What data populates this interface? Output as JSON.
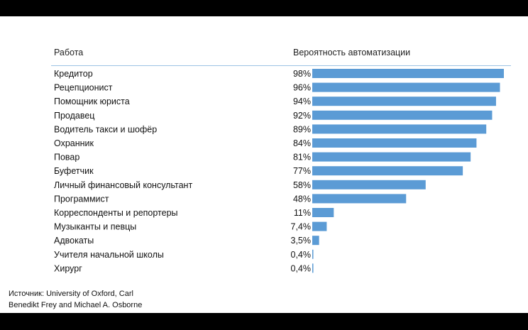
{
  "headers": {
    "job": "Работа",
    "probability": "Вероятность автоматизации"
  },
  "source": {
    "line1": "Источник: University of Oxford, Carl",
    "line2": "Benedikt Frey and Michael A. Osborne"
  },
  "colors": {
    "bar": "#5b9bd5",
    "divider": "#9cc3e4",
    "frame": "#000000"
  },
  "chart_data": {
    "type": "bar",
    "orientation": "horizontal",
    "categories": [
      "Кредитор",
      "Рецепционист",
      "Помощник юриста",
      "Продавец",
      "Водитель такси и шофёр",
      "Охранник",
      "Повар",
      "Буфетчик",
      "Личный финансовый консультант",
      "Программист",
      "Корреспонденты и репортеры",
      "Музыканты и певцы",
      "Адвокаты",
      "Учителя начальной школы",
      "Хирург"
    ],
    "values": [
      98,
      96,
      94,
      92,
      89,
      84,
      81,
      77,
      58,
      48,
      11,
      7.4,
      3.5,
      0.4,
      0.4
    ],
    "labels": [
      "98%",
      "96%",
      "94%",
      "92%",
      "89%",
      "84%",
      "81%",
      "77%",
      "58%",
      "48%",
      "11%",
      "7,4%",
      "3,5%",
      "0,4%",
      "0,4%"
    ],
    "xlim": [
      0,
      100
    ],
    "grid": false,
    "legend": "none"
  }
}
